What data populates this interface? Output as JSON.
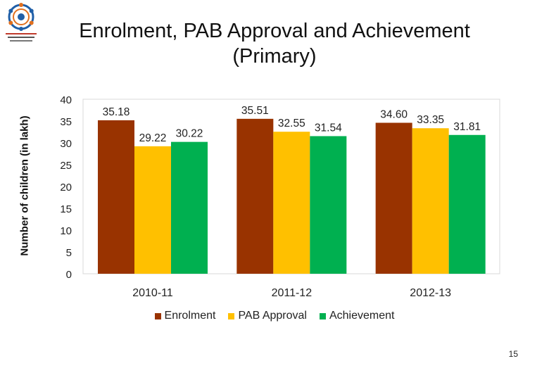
{
  "page_number": "15",
  "colors": {
    "enrolment": "#993300",
    "pab": "#FFC000",
    "achievement": "#00B050"
  },
  "chart_data": {
    "type": "bar",
    "title": "Enrolment, PAB Approval and Achievement (Primary)",
    "title_lines": [
      "Enrolment, PAB Approval and Achievement",
      "(Primary)"
    ],
    "xlabel": "",
    "ylabel": "Number of children (in lakh)",
    "categories": [
      "2010-11",
      "2011-12",
      "2012-13"
    ],
    "series": [
      {
        "name": "Enrolment",
        "values": [
          35.18,
          35.51,
          34.6
        ],
        "labels": [
          "35.18",
          "35.51",
          "34.60"
        ],
        "color": "#993300"
      },
      {
        "name": "PAB Approval",
        "values": [
          29.22,
          32.55,
          33.35
        ],
        "labels": [
          "29.22",
          "32.55",
          "33.35"
        ],
        "color": "#FFC000"
      },
      {
        "name": "Achievement",
        "values": [
          30.22,
          31.54,
          31.81
        ],
        "labels": [
          "30.22",
          "31.54",
          "31.81"
        ],
        "color": "#00B050"
      }
    ],
    "ylim": [
      0,
      40
    ],
    "yticks": [
      "0",
      "5",
      "10",
      "15",
      "20",
      "25",
      "30",
      "35",
      "40"
    ],
    "grid": false,
    "legend": "bottom-center"
  }
}
